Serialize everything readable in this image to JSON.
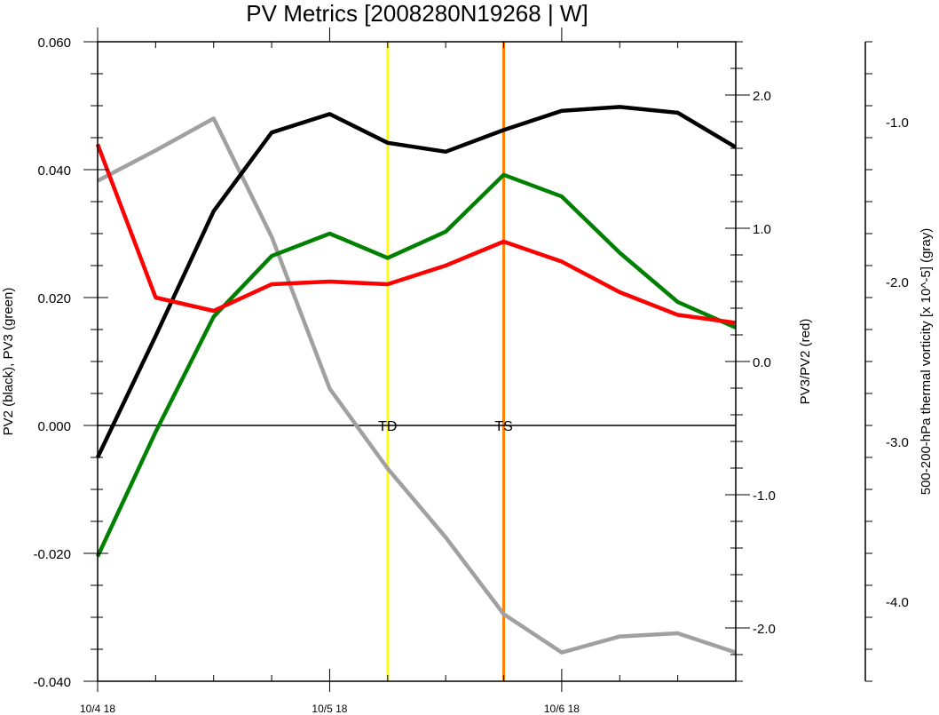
{
  "chart_data": {
    "type": "line",
    "title": "PV Metrics [2008280N19268 | W]",
    "x_ticks": [
      "10/4 18",
      "10/5 18",
      "10/6 18"
    ],
    "left_axis": {
      "label": "PV2 (black), PV3 (green)",
      "ylim": [
        -0.04,
        0.06
      ],
      "ticks": [
        "0.060",
        "0.040",
        "0.020",
        "0.000",
        "-0.020",
        "-0.040"
      ],
      "tick_values": [
        0.06,
        0.04,
        0.02,
        0.0,
        -0.02,
        -0.04
      ]
    },
    "right_axis": {
      "label": "PV3/PV2 (red)",
      "ylim": [
        -2.4,
        2.4
      ],
      "ticks": [
        "2.0",
        "1.0",
        "0.0",
        "-1.0",
        "-2.0"
      ],
      "tick_values": [
        2.0,
        1.0,
        0.0,
        -1.0,
        -2.0
      ]
    },
    "far_right_axis": {
      "label": "500-200-hPa thermal vorticity [x 10^-5] (gray)",
      "ylim": [
        -4.5,
        -0.5
      ],
      "ticks": [
        "-1.0",
        "-2.0",
        "-3.0",
        "-4.0"
      ],
      "tick_values": [
        -1.0,
        -2.0,
        -3.0,
        -4.0
      ]
    },
    "x_hours": [
      0,
      6,
      12,
      18,
      24,
      30,
      36,
      42,
      48,
      54,
      60,
      66
    ],
    "x_range": [
      0,
      66
    ],
    "series": [
      {
        "axis": "left",
        "color": "#000000",
        "values": [
          -0.005,
          0.014,
          0.0335,
          0.0458,
          0.0487,
          0.0442,
          0.0428,
          0.0462,
          0.0492,
          0.0498,
          0.0489,
          0.0435
        ]
      },
      {
        "axis": "left",
        "color": "#008000",
        "values": [
          -0.0205,
          -0.001,
          0.017,
          0.0265,
          0.03,
          0.0262,
          0.0303,
          0.0392,
          0.0358,
          0.027,
          0.0193,
          0.0153
        ]
      },
      {
        "axis": "right",
        "color": "#ff0000",
        "values": [
          1.63,
          0.48,
          0.38,
          0.58,
          0.6,
          0.58,
          0.72,
          0.9,
          0.75,
          0.52,
          0.35,
          0.29
        ]
      },
      {
        "axis": "far_right",
        "color": "#a0a0a0",
        "values": [
          -1.37,
          -1.18,
          -0.98,
          -1.72,
          -2.67,
          -3.17,
          -3.6,
          -4.08,
          -4.32,
          -4.22,
          -4.2,
          -4.32
        ]
      }
    ],
    "zero_line": 0.0,
    "markers": [
      {
        "label": "TD",
        "x_hour": 30,
        "color": "#ffff00"
      },
      {
        "label": "TS",
        "x_hour": 42,
        "color": "#ff8000"
      }
    ]
  }
}
